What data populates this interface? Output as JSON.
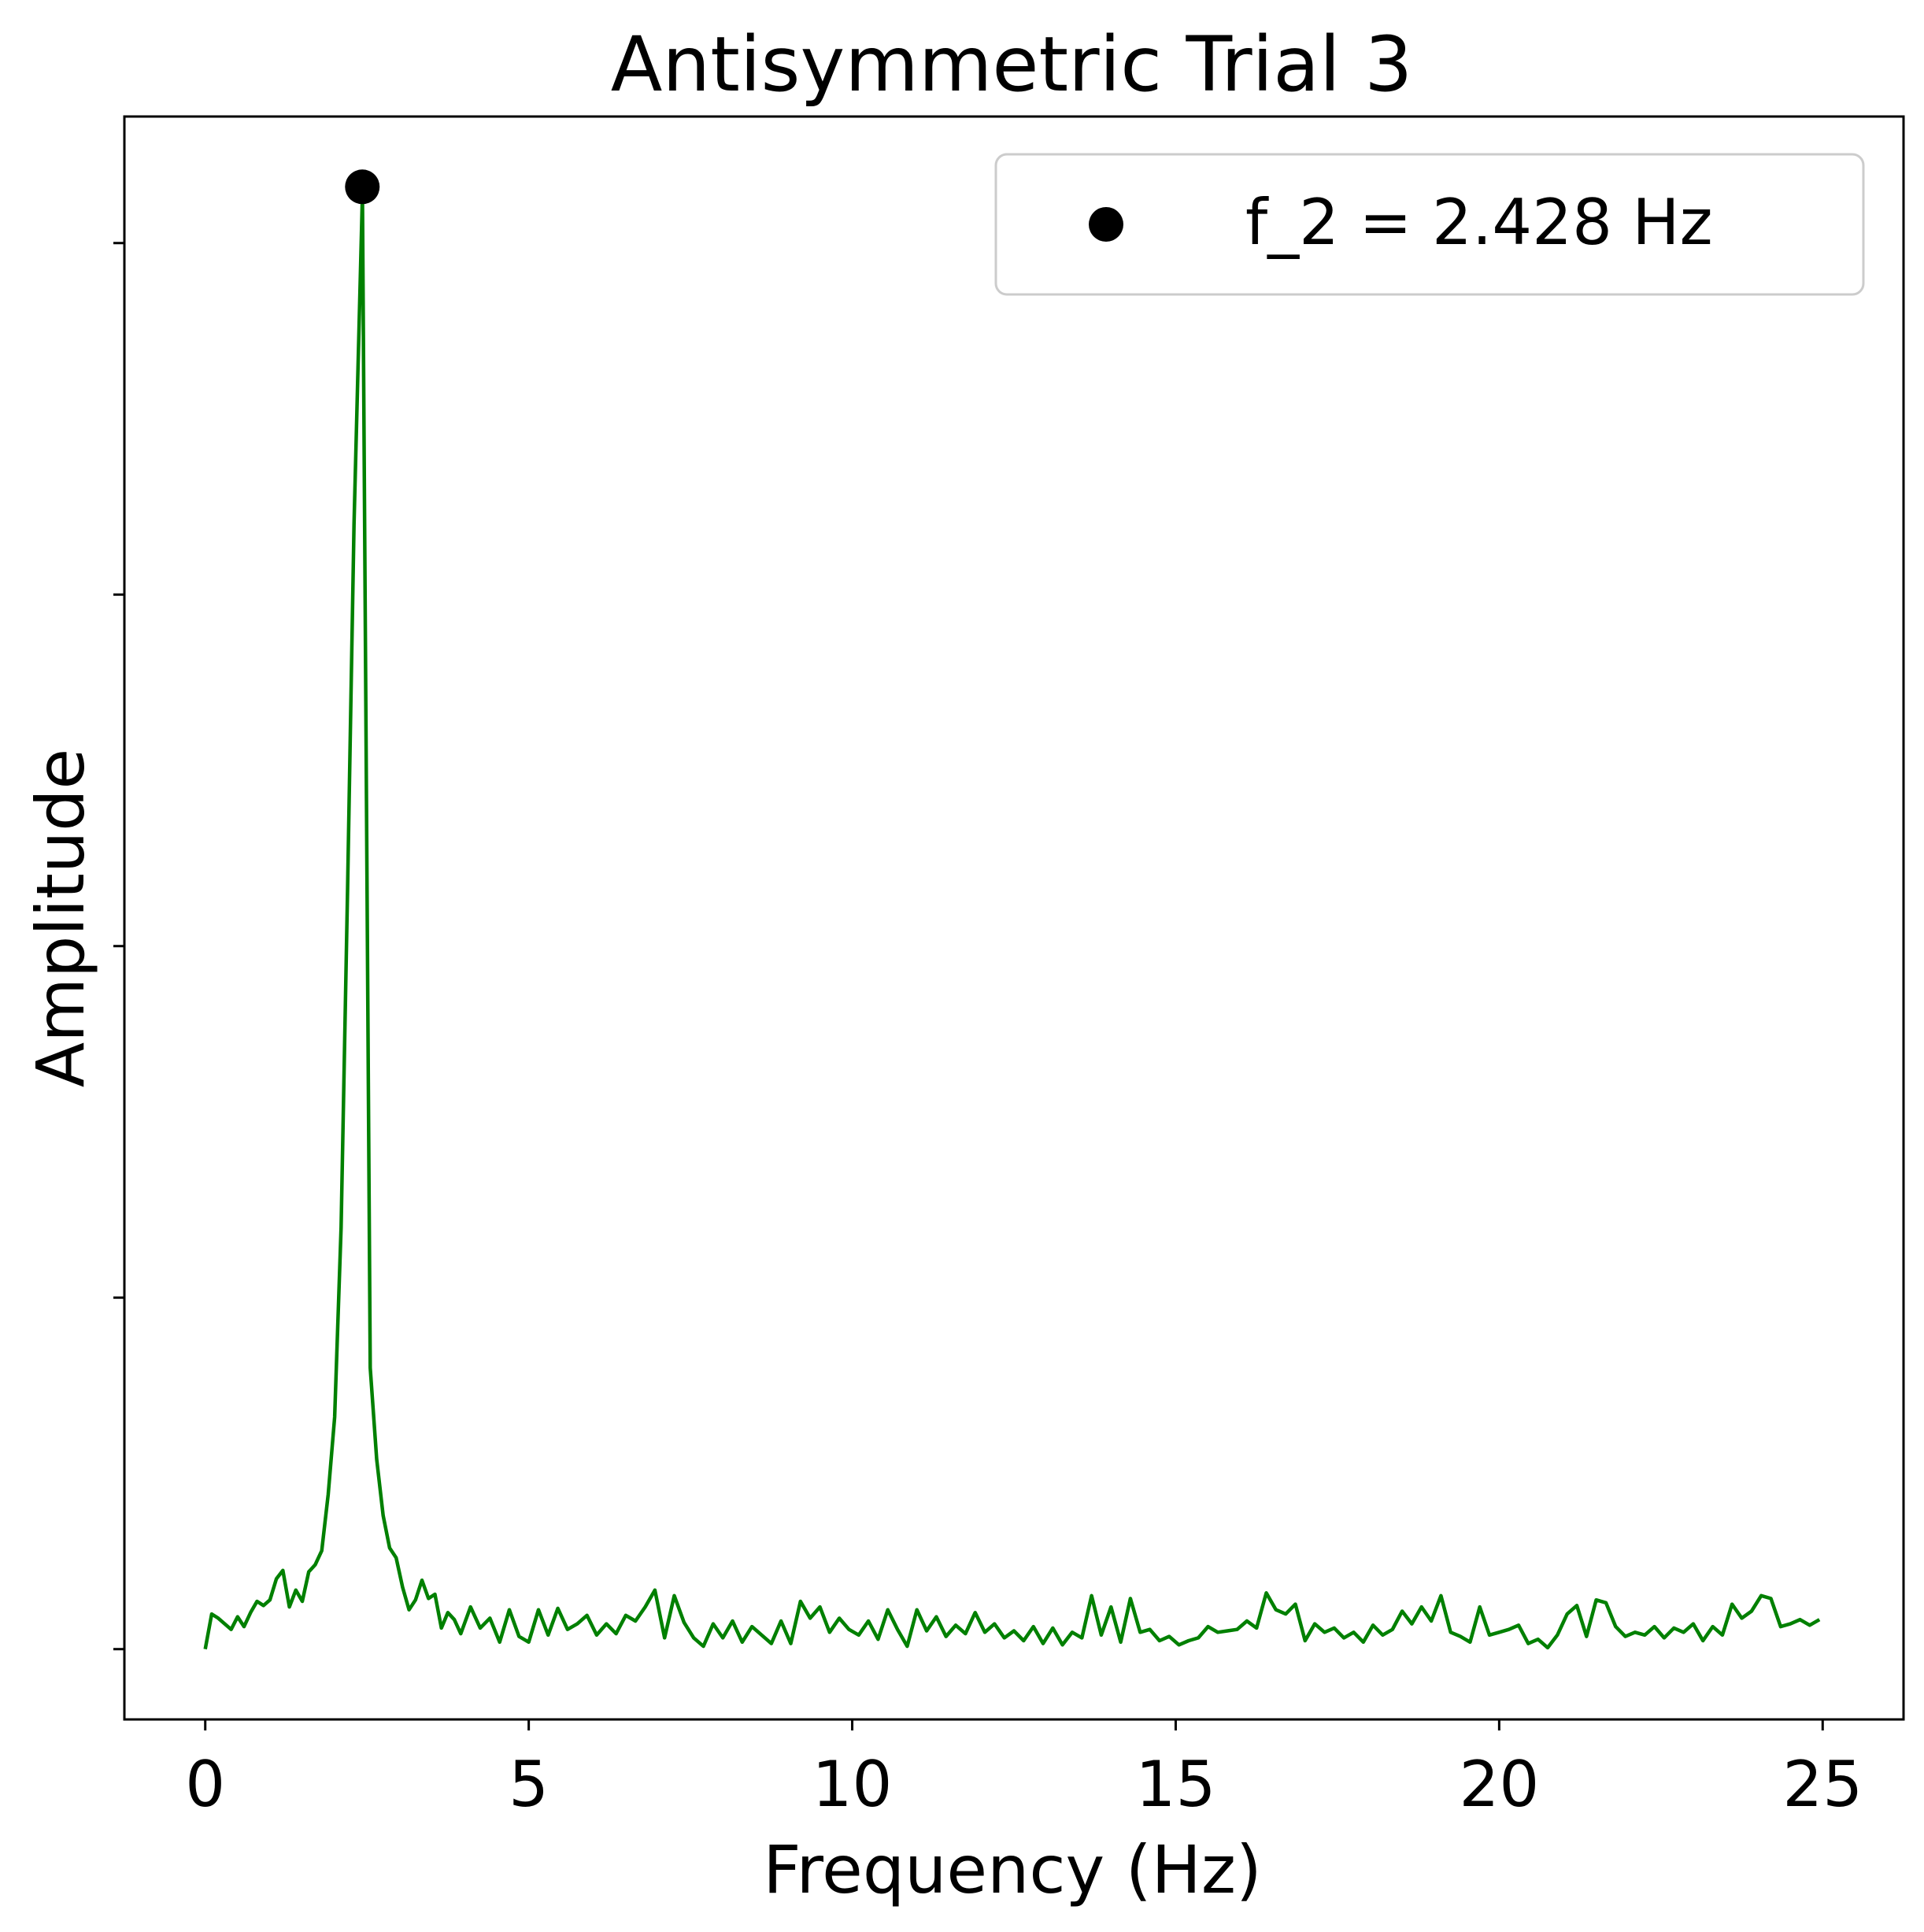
{
  "chart_data": {
    "type": "line",
    "title": "Antisymmetric Trial 3",
    "xlabel": "Frequency (Hz)",
    "ylabel": "Amplitude",
    "xlim": [
      -1.25,
      26.25
    ],
    "ylim": [
      -0.05,
      1.09
    ],
    "x_ticks": [
      0,
      5,
      10,
      15,
      20,
      25
    ],
    "y_ticks": [
      0,
      0.25,
      0.5,
      0.75,
      1.0
    ],
    "y_tick_labels_shown": false,
    "grid": false,
    "legend_position": "top-right",
    "series": [
      {
        "color": "#008000",
        "x": [
          0.0,
          0.1,
          0.2,
          0.3,
          0.4,
          0.5,
          0.6,
          0.7,
          0.8,
          0.9,
          1.0,
          1.1,
          1.2,
          1.3,
          1.4,
          1.5,
          1.6,
          1.7,
          1.8,
          1.9,
          2.0,
          2.1,
          2.2,
          2.3,
          2.43,
          2.55,
          2.65,
          2.75,
          2.85,
          2.95,
          3.05,
          3.15,
          3.25,
          3.35,
          3.45,
          3.55,
          3.65,
          3.75,
          3.85,
          3.95,
          4.1,
          4.25,
          4.4,
          4.55,
          4.7,
          4.85,
          5.0,
          5.15,
          5.3,
          5.45,
          5.6,
          5.75,
          5.9,
          6.05,
          6.2,
          6.35,
          6.5,
          6.65,
          6.8,
          6.95,
          7.1,
          7.25,
          7.4,
          7.55,
          7.7,
          7.85,
          8.0,
          8.15,
          8.3,
          8.45,
          8.6,
          8.75,
          8.9,
          9.05,
          9.2,
          9.35,
          9.5,
          9.65,
          9.8,
          9.95,
          10.1,
          10.25,
          10.4,
          10.55,
          10.7,
          10.85,
          11.0,
          11.15,
          11.3,
          11.45,
          11.6,
          11.75,
          11.9,
          12.05,
          12.2,
          12.35,
          12.5,
          12.65,
          12.8,
          12.95,
          13.1,
          13.25,
          13.4,
          13.55,
          13.7,
          13.85,
          14.0,
          14.15,
          14.3,
          14.45,
          14.6,
          14.75,
          14.9,
          15.05,
          15.2,
          15.35,
          15.5,
          15.65,
          15.8,
          15.95,
          16.1,
          16.25,
          16.4,
          16.55,
          16.7,
          16.85,
          17.0,
          17.15,
          17.3,
          17.45,
          17.6,
          17.75,
          17.9,
          18.05,
          18.2,
          18.35,
          18.5,
          18.65,
          18.8,
          18.95,
          19.1,
          19.25,
          19.4,
          19.55,
          19.7,
          19.85,
          20.0,
          20.15,
          20.3,
          20.45,
          20.6,
          20.75,
          20.9,
          21.05,
          21.2,
          21.35,
          21.5,
          21.65,
          21.8,
          21.95,
          22.1,
          22.25,
          22.4,
          22.55,
          22.7,
          22.85,
          23.0,
          23.15,
          23.3,
          23.45,
          23.6,
          23.75,
          23.9,
          24.05,
          24.2,
          24.35,
          24.5,
          24.65,
          24.8,
          24.95
        ],
        "y": [
          0.0,
          0.025,
          0.022,
          0.018,
          0.014,
          0.023,
          0.016,
          0.026,
          0.034,
          0.031,
          0.035,
          0.05,
          0.056,
          0.03,
          0.042,
          0.034,
          0.055,
          0.06,
          0.07,
          0.11,
          0.165,
          0.3,
          0.54,
          0.8,
          1.035,
          0.2,
          0.135,
          0.095,
          0.072,
          0.065,
          0.044,
          0.028,
          0.035,
          0.049,
          0.036,
          0.039,
          0.015,
          0.026,
          0.021,
          0.011,
          0.03,
          0.015,
          0.022,
          0.005,
          0.028,
          0.009,
          0.005,
          0.028,
          0.01,
          0.029,
          0.014,
          0.018,
          0.024,
          0.01,
          0.018,
          0.011,
          0.024,
          0.02,
          0.03,
          0.042,
          0.008,
          0.038,
          0.019,
          0.008,
          0.002,
          0.018,
          0.008,
          0.02,
          0.005,
          0.016,
          0.01,
          0.004,
          0.02,
          0.004,
          0.034,
          0.022,
          0.03,
          0.012,
          0.022,
          0.014,
          0.01,
          0.02,
          0.007,
          0.028,
          0.014,
          0.002,
          0.028,
          0.013,
          0.023,
          0.009,
          0.017,
          0.011,
          0.026,
          0.012,
          0.018,
          0.008,
          0.013,
          0.006,
          0.016,
          0.004,
          0.015,
          0.003,
          0.012,
          0.008,
          0.038,
          0.01,
          0.03,
          0.005,
          0.036,
          0.012,
          0.014,
          0.006,
          0.009,
          0.003,
          0.006,
          0.008,
          0.016,
          0.012,
          0.013,
          0.014,
          0.02,
          0.015,
          0.04,
          0.028,
          0.025,
          0.032,
          0.006,
          0.018,
          0.012,
          0.015,
          0.008,
          0.012,
          0.005,
          0.017,
          0.01,
          0.014,
          0.027,
          0.018,
          0.03,
          0.02,
          0.038,
          0.012,
          0.009,
          0.005,
          0.03,
          0.01,
          0.012,
          0.014,
          0.017,
          0.004,
          0.007,
          0.001,
          0.01,
          0.025,
          0.031,
          0.009,
          0.035,
          0.033,
          0.016,
          0.009,
          0.012,
          0.01,
          0.016,
          0.008,
          0.015,
          0.012,
          0.018,
          0.006,
          0.016,
          0.01,
          0.032,
          0.022,
          0.027,
          0.038,
          0.036,
          0.016,
          0.018,
          0.021,
          0.017,
          0.021
        ]
      }
    ],
    "markers": [
      {
        "label": "f_2 = 2.428 Hz",
        "x": 2.428,
        "y": 1.04,
        "color": "#000000"
      }
    ]
  }
}
